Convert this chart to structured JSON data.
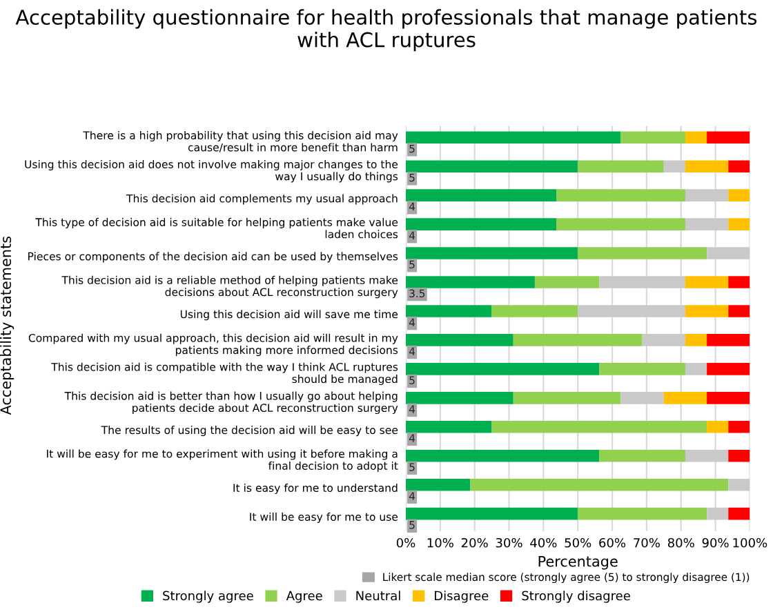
{
  "chart_data": {
    "type": "bar",
    "orientation": "horizontal",
    "stacked": true,
    "title": "Acceptability questionnaire for health professionals that manage patients\nwith ACL ruptures",
    "xlabel": "Percentage",
    "ylabel": "Acceptability statements",
    "categories": [
      "There is a high probability that using this decision aid may\ncause/result in more benefit than harm",
      "Using this decision aid does not involve making major changes to the\nway I usually do things",
      "This decision aid complements my usual approach",
      "This type of decision aid is suitable for helping patients make value\nladen choices",
      "Pieces or components of the decision aid can be used by themselves",
      "This decision aid is a reliable method of helping patients make\ndecisions about ACL reconstruction surgery",
      "Using this decision aid will save me time",
      "Compared with my usual approach, this decision aid will result in my\npatients making more informed decisions",
      "This decision aid is compatible with the way I think ACL ruptures\nshould be managed",
      "This decision aid is better than how I usually go about helping\npatients decide about ACL reconstruction surgery",
      "The results of using the decision aid will be easy to see",
      "It will be easy for me to experiment with using it before making a\nfinal decision to adopt it",
      "It is easy for me to understand",
      "It will be easy for me to use"
    ],
    "series": [
      {
        "name": "Strongly agree",
        "color": "#00b050",
        "values": [
          62.5,
          50,
          43.75,
          43.75,
          50,
          37.5,
          25,
          31.25,
          56.25,
          31.25,
          25,
          56.25,
          18.75,
          50
        ]
      },
      {
        "name": "Agree",
        "color": "#92d050",
        "values": [
          18.75,
          25,
          37.5,
          37.5,
          37.5,
          18.75,
          25,
          37.5,
          25,
          31.25,
          62.5,
          25,
          75,
          37.5
        ]
      },
      {
        "name": "Neutral",
        "color": "#c9c9c9",
        "values": [
          0,
          6.25,
          12.5,
          12.5,
          12.5,
          25,
          31.25,
          12.5,
          6.25,
          12.5,
          0,
          12.5,
          6.25,
          6.25
        ]
      },
      {
        "name": "Disagree",
        "color": "#ffc000",
        "values": [
          6.25,
          12.5,
          6.25,
          6.25,
          0,
          12.5,
          12.5,
          6.25,
          0,
          12.5,
          6.25,
          0,
          0,
          0
        ]
      },
      {
        "name": "Strongly disagree",
        "color": "#ff0000",
        "values": [
          12.5,
          6.25,
          0,
          0,
          0,
          6.25,
          6.25,
          12.5,
          12.5,
          12.5,
          6.25,
          6.25,
          0,
          6.25
        ]
      }
    ],
    "annotations": [
      "Likert scale median score (strongly agree (5) to strongly disagree (1))",
      {
        "text": "5",
        "y": "There is a high probability that using this decision aid may\ncause/result in more benefit than harm"
      },
      {
        "text": "5",
        "y": "Using this decision aid does not involve making major changes to the\nway I usually do things"
      },
      {
        "text": "4",
        "y": "This decision aid complements my usual approach"
      },
      {
        "text": "4",
        "y": "This type of decision aid is suitable for helping patients make value\nladen choices"
      },
      {
        "text": "5",
        "y": "Pieces or components of the decision aid can be used by themselves"
      },
      {
        "text": "3.5",
        "y": "This decision aid is a reliable method of helping patients make\ndecisions about ACL reconstruction surgery"
      },
      {
        "text": "4",
        "y": "Using this decision aid will save me time"
      },
      {
        "text": "4",
        "y": "Compared with my usual approach, this decision aid will result in my\npatients making more informed decisions"
      },
      {
        "text": "5",
        "y": "This decision aid is compatible with the way I think ACL ruptures\nshould be managed"
      },
      {
        "text": "4",
        "y": "This decision aid is better than how I usually go about helping\npatients decide about ACL reconstruction surgery"
      },
      {
        "text": "4",
        "y": "The results of using the decision aid will be easy to see"
      },
      {
        "text": "5",
        "y": "It will be easy for me to experiment with using it before making a\nfinal decision to adopt it"
      },
      {
        "text": "4",
        "y": "It is easy for me to understand"
      },
      {
        "text": "5",
        "y": "It will be easy for me to use"
      }
    ],
    "xlim": [
      0,
      100
    ],
    "xticks": [
      {
        "value": 0,
        "label": "0%"
      },
      {
        "value": 10,
        "label": "10%"
      },
      {
        "value": 20,
        "label": "20%"
      },
      {
        "value": 30,
        "label": "30%"
      },
      {
        "value": 40,
        "label": "40%"
      },
      {
        "value": 50,
        "label": "50%"
      },
      {
        "value": 60,
        "label": "60%"
      },
      {
        "value": 70,
        "label": "70%"
      },
      {
        "value": 80,
        "label": "80%"
      },
      {
        "value": 90,
        "label": "90%"
      },
      {
        "value": 100,
        "label": "100%"
      }
    ],
    "grid": "x",
    "legend": "bottom"
  }
}
